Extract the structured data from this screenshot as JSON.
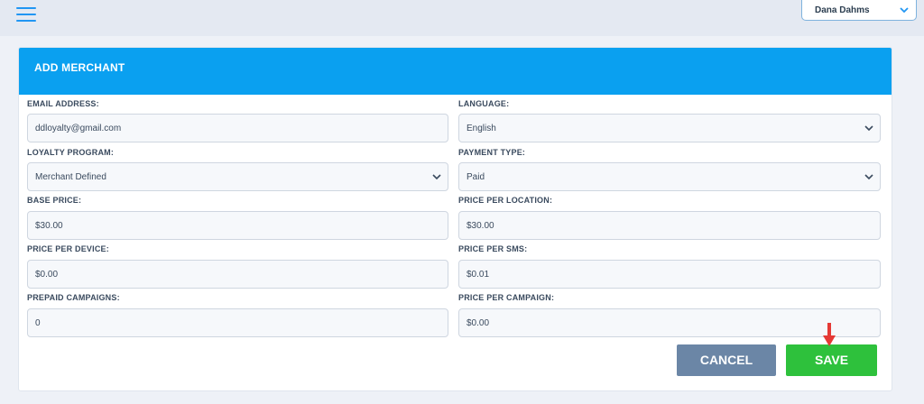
{
  "header": {
    "user_name": "Dana Dahms"
  },
  "card": {
    "title": "ADD MERCHANT"
  },
  "form": {
    "email_label": "EMAIL ADDRESS:",
    "email_value": "ddloyalty@gmail.com",
    "language_label": "LANGUAGE:",
    "language_value": "English",
    "loyalty_label": "LOYALTY PROGRAM:",
    "loyalty_value": "Merchant Defined",
    "payment_label": "PAYMENT TYPE:",
    "payment_value": "Paid",
    "base_price_label": "BASE PRICE:",
    "base_price_value": "$30.00",
    "price_location_label": "PRICE PER LOCATION:",
    "price_location_value": "$30.00",
    "price_device_label": "PRICE PER DEVICE:",
    "price_device_value": "$0.00",
    "price_sms_label": "PRICE PER SMS:",
    "price_sms_value": "$0.01",
    "prepaid_label": "PREPAID CAMPAIGNS:",
    "prepaid_value": "0",
    "price_campaign_label": "PRICE PER CAMPAIGN:",
    "price_campaign_value": "$0.00"
  },
  "actions": {
    "cancel_label": "CANCEL",
    "save_label": "SAVE"
  },
  "colors": {
    "accent": "#0aa0f0",
    "save": "#2ec13c",
    "cancel": "#6b86a6",
    "annotation_arrow": "#e53935"
  },
  "icons": {
    "menu": "hamburger-menu-icon",
    "dropdown": "chevron-down-icon",
    "annotation": "red-down-arrow-icon"
  }
}
